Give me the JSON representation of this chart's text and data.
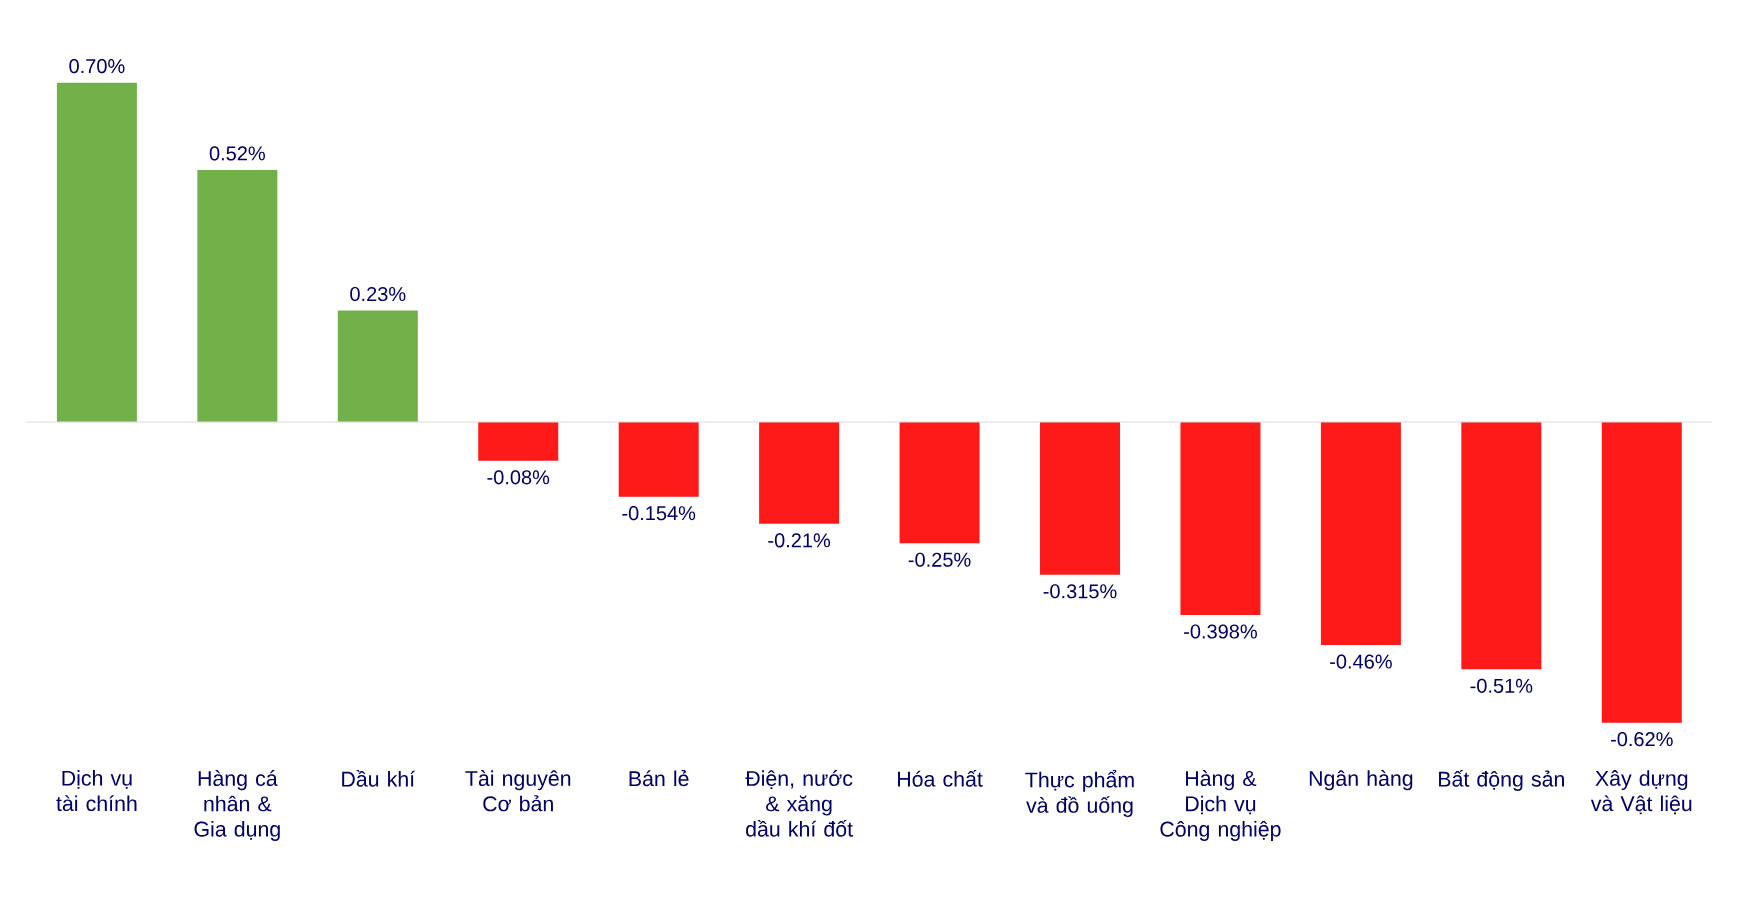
{
  "chart_data": {
    "type": "bar",
    "categories": [
      "Dịch vụ tài chính",
      "Hàng cá nhân & Gia dụng",
      "Dầu khí",
      "Tài nguyên Cơ bản",
      "Bán lẻ",
      "Điện, nước & xăng dầu khí đốt",
      "Hóa chất",
      "Thực phẩm và đồ uống",
      "Hàng & Dịch vụ Công nghiệp",
      "Ngân hàng",
      "Bất động sản",
      "Xây dựng và Vật liệu"
    ],
    "values": [
      0.7,
      0.52,
      0.23,
      -0.08,
      -0.154,
      -0.21,
      -0.25,
      -0.315,
      -0.398,
      -0.46,
      -0.51,
      -0.62
    ],
    "value_labels": [
      "0.70%",
      "0.52%",
      "0.23%",
      "-0.08%",
      "-0.154%",
      "-0.21%",
      "-0.25%",
      "-0.315%",
      "-0.398%",
      "-0.46%",
      "-0.51%",
      "-0.62%"
    ],
    "colors": [
      "#72b04a",
      "#72b04a",
      "#72b04a",
      "#ff1a1a",
      "#ff1a1a",
      "#ff1a1a",
      "#ff1a1a",
      "#ff1a1a",
      "#ff1a1a",
      "#ff1a1a",
      "#ff1a1a",
      "#ff1a1a"
    ],
    "ref_lines": [
      {
        "axis": "y",
        "value": 0,
        "color": "#d9d9d9"
      }
    ]
  }
}
